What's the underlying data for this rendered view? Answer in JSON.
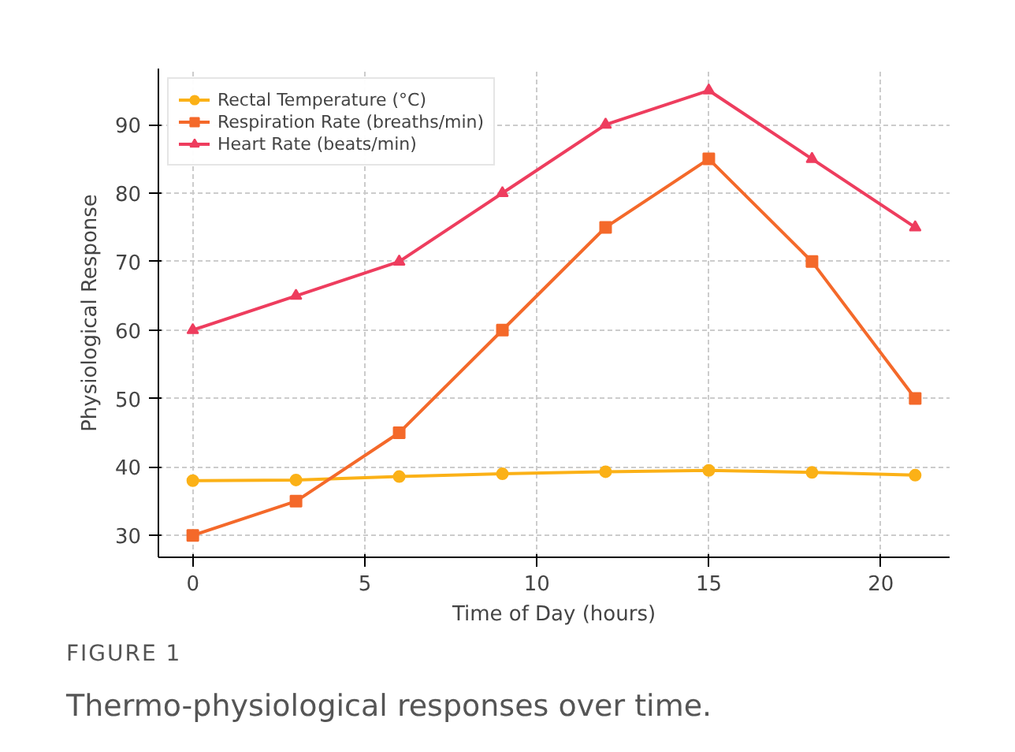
{
  "chart_data": {
    "type": "line",
    "xlabel": "Time of Day (hours)",
    "ylabel": "Physiological Response",
    "x": [
      0,
      3,
      6,
      9,
      12,
      15,
      18,
      21
    ],
    "series": [
      {
        "name": "Rectal Temperature (°C)",
        "color": "#fbb117",
        "marker": "circle",
        "values": [
          38.0,
          38.1,
          38.6,
          39.0,
          39.3,
          39.5,
          39.2,
          38.8
        ]
      },
      {
        "name": "Respiration Rate (breaths/min)",
        "color": "#f4692a",
        "marker": "square",
        "values": [
          30,
          35,
          45,
          60,
          75,
          85,
          70,
          50
        ]
      },
      {
        "name": "Heart Rate (beats/min)",
        "color": "#ee3d5e",
        "marker": "triangle",
        "values": [
          60,
          65,
          70,
          80,
          90,
          95,
          85,
          75
        ]
      }
    ],
    "xlim": [
      -1,
      22
    ],
    "xticks": [
      0,
      5,
      10,
      15,
      20
    ],
    "ylim": [
      26.8,
      98.2
    ],
    "yticks": [
      30,
      40,
      50,
      60,
      70,
      80,
      90
    ],
    "grid": true,
    "legend": "top left",
    "line_style": "solid",
    "annotations": [
      "FIGURE 1",
      "Thermo-physiological responses over time."
    ]
  }
}
